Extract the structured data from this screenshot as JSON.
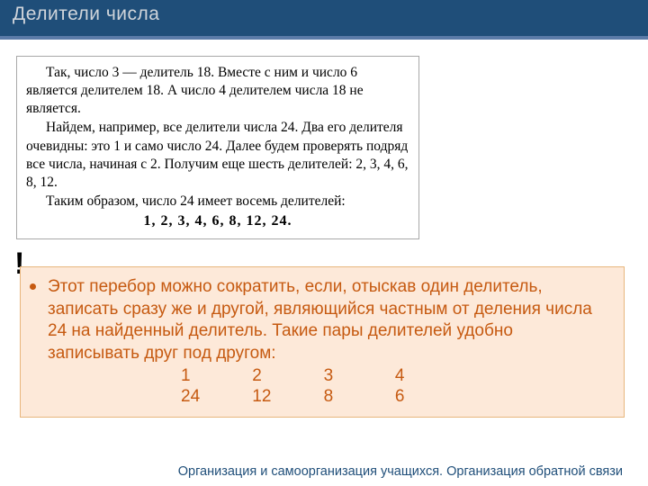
{
  "header": {
    "title": "Делители  числа"
  },
  "textbox": {
    "p1_a": "Так, число 3 — делитель 18. Вместе с ним и число 6 является делителем 18. А число 4 делителем числа 18 не является.",
    "p2": "Найдем, например, все делители числа 24. Два его делителя очевидны: это 1 и само число 24. Далее будем проверять подряд все числа, начиная с 2. Получим еще шесть делителей: 2, 3, 4, 6, 8, 12.",
    "p3": "Таким образом, число 24 имеет восемь делителей:",
    "divisors": "1, 2, 3, 4, 6, 8, 12, 24."
  },
  "tip": {
    "exclaim": "!",
    "text": "Этот перебор можно сократить, если, отыскав один делитель, записать сразу же и другой, являющийся частным от деления числа 24 на найденный делитель. Такие пары делителей удобно записывать друг под другом:",
    "row1": {
      "a": "1",
      "b": "2",
      "c": "3",
      "d": "4"
    },
    "row2": {
      "a": "24",
      "b": "12",
      "c": "8",
      "d": "6"
    }
  },
  "footer": {
    "text": "Организация и самоорганизация учащихся. Организация обратной связи"
  },
  "colors": {
    "header_bg": "#1f4e79",
    "header_border": "#5b7ba8",
    "header_text": "#d0d5db",
    "tip_bg": "#fde9d9",
    "tip_border": "#e8b67d",
    "tip_text": "#c65a11",
    "footer_text": "#1f4e79"
  }
}
